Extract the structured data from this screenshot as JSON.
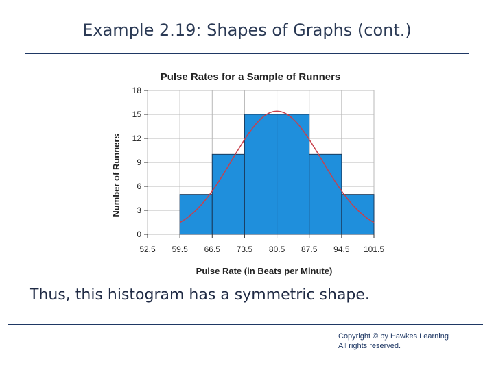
{
  "slide": {
    "title": "Example 2.19: Shapes of Graphs  (cont.)",
    "caption": "Thus, this histogram has a symmetric shape.",
    "copyright_line1": "Copyright © by Hawkes Learning",
    "copyright_line2": "All rights reserved."
  },
  "chart_data": {
    "type": "bar",
    "title": "Pulse Rates for a Sample of Runners",
    "xlabel": "Pulse Rate (in Beats per Minute)",
    "ylabel": "Number of Runners",
    "bin_edges": [
      52.5,
      59.5,
      66.5,
      73.5,
      80.5,
      87.5,
      94.5,
      101.5
    ],
    "x_tick_labels": [
      "52.5",
      "59.5",
      "66.5",
      "73.5",
      "80.5",
      "87.5",
      "94.5",
      "101.5"
    ],
    "values": [
      0,
      5,
      10,
      15,
      15,
      10,
      5
    ],
    "ylim": [
      0,
      18
    ],
    "y_ticks": [
      0,
      3,
      6,
      9,
      12,
      15,
      18
    ],
    "grid": true,
    "overlay_curve": {
      "type": "normal",
      "mean": 80.5,
      "peak": 15.4
    },
    "colors": {
      "bar": "#1f8fdc",
      "bar_stroke": "#1a3a5c",
      "curve": "#c8404c",
      "grid": "#b8b8b8"
    }
  }
}
